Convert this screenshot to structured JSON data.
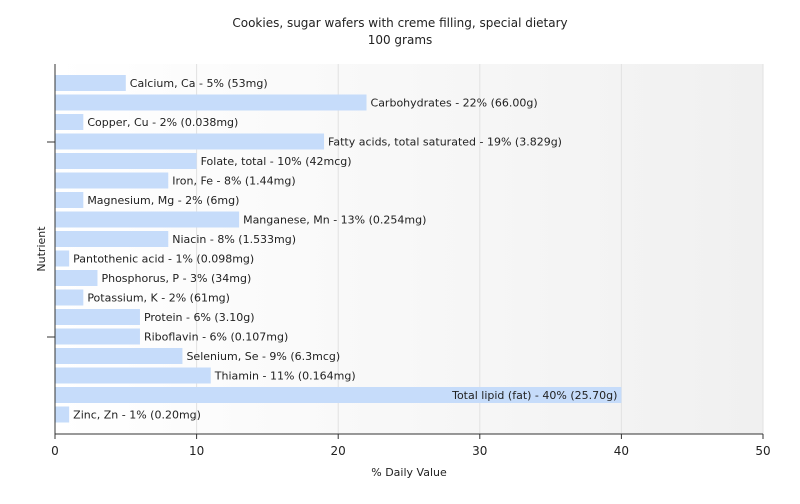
{
  "chart_data": {
    "type": "bar",
    "orientation": "horizontal",
    "title": "Cookies, sugar wafers with creme filling, special dietary",
    "subtitle": "100 grams",
    "xlabel": "% Daily Value",
    "ylabel": "Nutrient",
    "xlim": [
      0,
      50
    ],
    "xticks": [
      0,
      10,
      20,
      30,
      40,
      50
    ],
    "grid": true,
    "bar_color": "#c6dcfa",
    "categories": [
      "Calcium, Ca",
      "Carbohydrates",
      "Copper, Cu",
      "Fatty acids, total saturated",
      "Folate, total",
      "Iron, Fe",
      "Magnesium, Mg",
      "Manganese, Mn",
      "Niacin",
      "Pantothenic acid",
      "Phosphorus, P",
      "Potassium, K",
      "Protein",
      "Riboflavin",
      "Selenium, Se",
      "Thiamin",
      "Total lipid (fat)",
      "Zinc, Zn"
    ],
    "values": [
      5,
      22,
      2,
      19,
      10,
      8,
      2,
      13,
      8,
      1,
      3,
      2,
      6,
      6,
      9,
      11,
      40,
      1
    ],
    "labels": [
      "Calcium, Ca - 5% (53mg)",
      "Carbohydrates - 22% (66.00g)",
      "Copper, Cu - 2% (0.038mg)",
      "Fatty acids, total saturated - 19% (3.829g)",
      "Folate, total - 10% (42mcg)",
      "Iron, Fe - 8% (1.44mg)",
      "Magnesium, Mg - 2% (6mg)",
      "Manganese, Mn - 13% (0.254mg)",
      "Niacin - 8% (1.533mg)",
      "Pantothenic acid - 1% (0.098mg)",
      "Phosphorus, P - 3% (34mg)",
      "Potassium, K - 2% (61mg)",
      "Protein - 6% (3.10g)",
      "Riboflavin - 6% (0.107mg)",
      "Selenium, Se - 9% (6.3mcg)",
      "Thiamin - 11% (0.164mg)",
      "Total lipid (fat) - 40% (25.70g)",
      "Zinc, Zn - 1% (0.20mg)"
    ]
  }
}
